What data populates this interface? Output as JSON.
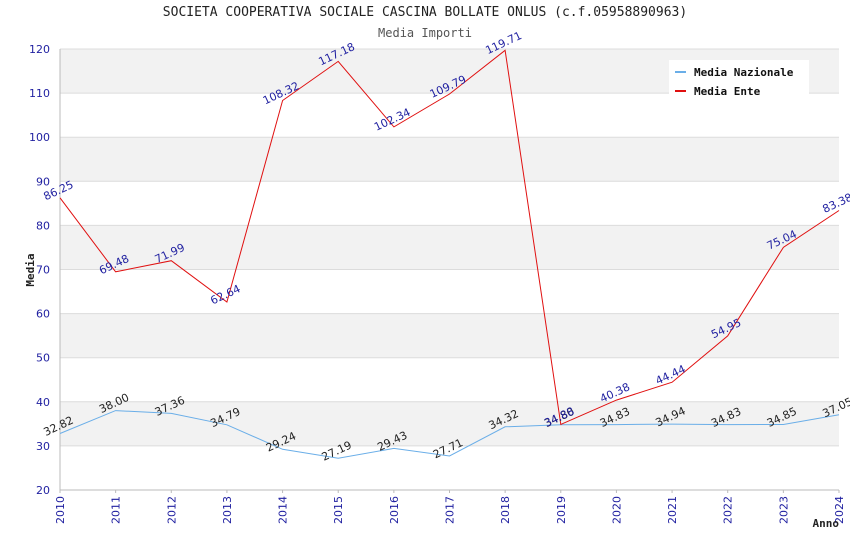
{
  "chart_data": {
    "type": "line",
    "title": "SOCIETA COOPERATIVA SOCIALE CASCINA BOLLATE ONLUS (c.f.05958890963)",
    "subtitle": "Media Importi",
    "xlabel": "Anno",
    "ylabel": "Media",
    "ylim": [
      20,
      120
    ],
    "yticks": [
      20,
      30,
      40,
      50,
      60,
      70,
      80,
      90,
      100,
      110,
      120
    ],
    "grid": true,
    "legend_position": "top-right",
    "categories": [
      "2010",
      "2011",
      "2012",
      "2013",
      "2014",
      "2015",
      "2016",
      "2017",
      "2018",
      "2019",
      "2020",
      "2021",
      "2022",
      "2023",
      "2024"
    ],
    "series": [
      {
        "name": "Media Nazionale",
        "color": "#6aaee8",
        "values": [
          32.82,
          38.0,
          37.36,
          34.79,
          29.24,
          27.19,
          29.43,
          27.71,
          34.32,
          34.8,
          34.83,
          34.94,
          34.83,
          34.85,
          37.05
        ],
        "labels": [
          "32.82",
          "38.00",
          "37.36",
          "34.79",
          "29.24",
          "27.19",
          "29.43",
          "27.71",
          "34.32",
          "34.80",
          "34.83",
          "34.94",
          "34.83",
          "34.85",
          "37.05"
        ]
      },
      {
        "name": "Media Ente",
        "color": "#e01010",
        "values": [
          86.25,
          69.48,
          71.99,
          62.64,
          108.32,
          117.18,
          102.34,
          109.79,
          119.71,
          34.88,
          40.38,
          44.44,
          54.95,
          75.04,
          83.38
        ],
        "labels": [
          "86.25",
          "69.48",
          "71.99",
          "62.64",
          "108.32",
          "117.18",
          "102.34",
          "109.79",
          "119.71",
          "34.88",
          "40.38",
          "44.44",
          "54.95",
          "75.04",
          "83.38"
        ]
      }
    ]
  }
}
